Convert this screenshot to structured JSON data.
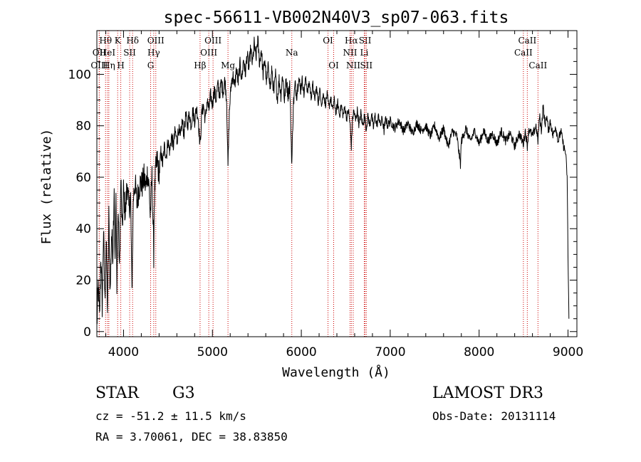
{
  "chart_data": {
    "type": "line",
    "title": "spec-56611-VB002N40V3_sp07-063.fits",
    "xlabel": "Wavelength (Å)",
    "ylabel": "Flux (relative)",
    "xlim": [
      3700,
      9100
    ],
    "ylim": [
      -2,
      117
    ],
    "x_ticks": [
      4000,
      5000,
      6000,
      7000,
      8000,
      9000
    ],
    "y_ticks": [
      0,
      20,
      40,
      60,
      80,
      100
    ],
    "line_color": "#000000",
    "marker_color": "#cc0000",
    "spectrum": [
      [
        3700,
        2
      ],
      [
        3715,
        18
      ],
      [
        3730,
        5
      ],
      [
        3745,
        30
      ],
      [
        3760,
        10
      ],
      [
        3775,
        40
      ],
      [
        3790,
        12
      ],
      [
        3805,
        35
      ],
      [
        3820,
        8
      ],
      [
        3835,
        45
      ],
      [
        3850,
        15
      ],
      [
        3865,
        38
      ],
      [
        3880,
        30
      ],
      [
        3895,
        58
      ],
      [
        3905,
        25
      ],
      [
        3915,
        50
      ],
      [
        3925,
        20
      ],
      [
        3940,
        48
      ],
      [
        3955,
        22
      ],
      [
        3970,
        60
      ],
      [
        3985,
        38
      ],
      [
        4000,
        55
      ],
      [
        4020,
        45
      ],
      [
        4040,
        58
      ],
      [
        4060,
        48
      ],
      [
        4080,
        52
      ],
      [
        4095,
        15
      ],
      [
        4100,
        28
      ],
      [
        4110,
        52
      ],
      [
        4130,
        58
      ],
      [
        4150,
        50
      ],
      [
        4170,
        55
      ],
      [
        4190,
        58
      ],
      [
        4210,
        57
      ],
      [
        4230,
        60
      ],
      [
        4250,
        56
      ],
      [
        4270,
        62
      ],
      [
        4290,
        55
      ],
      [
        4300,
        45
      ],
      [
        4320,
        60
      ],
      [
        4340,
        30
      ],
      [
        4345,
        50
      ],
      [
        4360,
        62
      ],
      [
        4380,
        67
      ],
      [
        4400,
        60
      ],
      [
        4420,
        70
      ],
      [
        4440,
        65
      ],
      [
        4460,
        72
      ],
      [
        4480,
        68
      ],
      [
        4500,
        74
      ],
      [
        4520,
        70
      ],
      [
        4540,
        76
      ],
      [
        4560,
        72
      ],
      [
        4580,
        78
      ],
      [
        4600,
        74
      ],
      [
        4620,
        79
      ],
      [
        4640,
        75
      ],
      [
        4660,
        82
      ],
      [
        4680,
        77
      ],
      [
        4700,
        84
      ],
      [
        4720,
        80
      ],
      [
        4740,
        85
      ],
      [
        4760,
        80
      ],
      [
        4780,
        86
      ],
      [
        4800,
        82
      ],
      [
        4820,
        87
      ],
      [
        4840,
        83
      ],
      [
        4861,
        72
      ],
      [
        4880,
        85
      ],
      [
        4900,
        88
      ],
      [
        4920,
        82
      ],
      [
        4940,
        90
      ],
      [
        4960,
        86
      ],
      [
        4980,
        92
      ],
      [
        5000,
        88
      ],
      [
        5020,
        94
      ],
      [
        5040,
        90
      ],
      [
        5060,
        96
      ],
      [
        5080,
        92
      ],
      [
        5100,
        97
      ],
      [
        5120,
        93
      ],
      [
        5140,
        98
      ],
      [
        5160,
        90
      ],
      [
        5175,
        64
      ],
      [
        5190,
        85
      ],
      [
        5210,
        96
      ],
      [
        5230,
        100
      ],
      [
        5250,
        95
      ],
      [
        5270,
        102
      ],
      [
        5290,
        97
      ],
      [
        5310,
        104
      ],
      [
        5330,
        98
      ],
      [
        5350,
        106
      ],
      [
        5370,
        100
      ],
      [
        5390,
        108
      ],
      [
        5410,
        102
      ],
      [
        5430,
        110
      ],
      [
        5450,
        104
      ],
      [
        5470,
        112
      ],
      [
        5490,
        106
      ],
      [
        5510,
        114
      ],
      [
        5530,
        104
      ],
      [
        5550,
        110
      ],
      [
        5570,
        100
      ],
      [
        5590,
        106
      ],
      [
        5610,
        96
      ],
      [
        5630,
        104
      ],
      [
        5650,
        94
      ],
      [
        5670,
        102
      ],
      [
        5690,
        92
      ],
      [
        5710,
        100
      ],
      [
        5730,
        90
      ],
      [
        5750,
        98
      ],
      [
        5770,
        92
      ],
      [
        5790,
        100
      ],
      [
        5810,
        90
      ],
      [
        5830,
        98
      ],
      [
        5850,
        92
      ],
      [
        5870,
        96
      ],
      [
        5893,
        65
      ],
      [
        5910,
        88
      ],
      [
        5930,
        96
      ],
      [
        5950,
        92
      ],
      [
        5970,
        99
      ],
      [
        5990,
        94
      ],
      [
        6010,
        98
      ],
      [
        6030,
        92
      ],
      [
        6050,
        99
      ],
      [
        6070,
        93
      ],
      [
        6090,
        97
      ],
      [
        6110,
        91
      ],
      [
        6130,
        96
      ],
      [
        6150,
        90
      ],
      [
        6170,
        95
      ],
      [
        6190,
        89
      ],
      [
        6210,
        94
      ],
      [
        6230,
        88
      ],
      [
        6250,
        93
      ],
      [
        6270,
        88
      ],
      [
        6290,
        92
      ],
      [
        6310,
        87
      ],
      [
        6330,
        91
      ],
      [
        6350,
        86
      ],
      [
        6370,
        90
      ],
      [
        6390,
        85
      ],
      [
        6410,
        89
      ],
      [
        6430,
        84
      ],
      [
        6450,
        88
      ],
      [
        6470,
        84
      ],
      [
        6490,
        87
      ],
      [
        6510,
        83
      ],
      [
        6530,
        86
      ],
      [
        6550,
        80
      ],
      [
        6563,
        72
      ],
      [
        6575,
        82
      ],
      [
        6590,
        86
      ],
      [
        6610,
        82
      ],
      [
        6630,
        86
      ],
      [
        6650,
        80
      ],
      [
        6670,
        85
      ],
      [
        6690,
        80
      ],
      [
        6710,
        84
      ],
      [
        6730,
        79
      ],
      [
        6750,
        84
      ],
      [
        6770,
        80
      ],
      [
        6790,
        85
      ],
      [
        6810,
        79
      ],
      [
        6830,
        84
      ],
      [
        6850,
        80
      ],
      [
        6870,
        84
      ],
      [
        6890,
        80
      ],
      [
        6910,
        83
      ],
      [
        6930,
        78
      ],
      [
        6950,
        83
      ],
      [
        6970,
        80
      ],
      [
        7000,
        82
      ],
      [
        7050,
        79
      ],
      [
        7100,
        82
      ],
      [
        7150,
        78
      ],
      [
        7200,
        81
      ],
      [
        7250,
        77
      ],
      [
        7300,
        81
      ],
      [
        7350,
        78
      ],
      [
        7400,
        80
      ],
      [
        7450,
        76
      ],
      [
        7500,
        80
      ],
      [
        7550,
        75
      ],
      [
        7600,
        79
      ],
      [
        7650,
        72
      ],
      [
        7700,
        78
      ],
      [
        7750,
        76
      ],
      [
        7790,
        65
      ],
      [
        7800,
        74
      ],
      [
        7850,
        79
      ],
      [
        7900,
        74
      ],
      [
        7950,
        78
      ],
      [
        8000,
        73
      ],
      [
        8050,
        78
      ],
      [
        8100,
        74
      ],
      [
        8150,
        77
      ],
      [
        8200,
        73
      ],
      [
        8250,
        78
      ],
      [
        8300,
        74
      ],
      [
        8350,
        77
      ],
      [
        8400,
        72
      ],
      [
        8450,
        77
      ],
      [
        8498,
        73
      ],
      [
        8520,
        78
      ],
      [
        8542,
        72
      ],
      [
        8560,
        79
      ],
      [
        8600,
        76
      ],
      [
        8640,
        80
      ],
      [
        8662,
        74
      ],
      [
        8680,
        84
      ],
      [
        8700,
        78
      ],
      [
        8720,
        88
      ],
      [
        8740,
        80
      ],
      [
        8760,
        84
      ],
      [
        8780,
        78
      ],
      [
        8800,
        82
      ],
      [
        8830,
        76
      ],
      [
        8860,
        80
      ],
      [
        8890,
        74
      ],
      [
        8920,
        78
      ],
      [
        8950,
        72
      ],
      [
        8970,
        70
      ],
      [
        8980,
        66
      ],
      [
        8990,
        60
      ],
      [
        9000,
        30
      ],
      [
        9010,
        5
      ]
    ],
    "line_markers": [
      {
        "label": "Hθ",
        "x": 3798,
        "row": 0
      },
      {
        "label": "OII",
        "x": 3727,
        "row": 1
      },
      {
        "label": "OIII",
        "x": 3727,
        "row": 2
      },
      {
        "label": "HeI",
        "x": 3820,
        "row": 1
      },
      {
        "label": "Hη",
        "x": 3835,
        "row": 2
      },
      {
        "label": "K",
        "x": 3934,
        "row": 0
      },
      {
        "label": "H",
        "x": 3969,
        "row": 2
      },
      {
        "label": "SII",
        "x": 4069,
        "row": 1
      },
      {
        "label": "Hδ",
        "x": 4102,
        "row": 0
      },
      {
        "label": "OIII",
        "x": 4363,
        "row": 0
      },
      {
        "label": "Hγ",
        "x": 4340,
        "row": 1
      },
      {
        "label": "G",
        "x": 4305,
        "row": 2
      },
      {
        "label": "Hβ",
        "x": 4861,
        "row": 2
      },
      {
        "label": "OIII",
        "x": 5007,
        "row": 0
      },
      {
        "label": "OIII",
        "x": 4959,
        "row": 1
      },
      {
        "label": "Mg",
        "x": 5175,
        "row": 2
      },
      {
        "label": "Na",
        "x": 5893,
        "row": 1
      },
      {
        "label": "OI",
        "x": 6300,
        "row": 0
      },
      {
        "label": "OI",
        "x": 6364,
        "row": 2
      },
      {
        "label": "Hα",
        "x": 6563,
        "row": 0
      },
      {
        "label": "NII",
        "x": 6548,
        "row": 1
      },
      {
        "label": "NII",
        "x": 6584,
        "row": 2
      },
      {
        "label": "SII",
        "x": 6717,
        "row": 0
      },
      {
        "label": "Li",
        "x": 6708,
        "row": 1
      },
      {
        "label": "SII",
        "x": 6731,
        "row": 2
      },
      {
        "label": "CaII",
        "x": 8542,
        "row": 0
      },
      {
        "label": "CaII",
        "x": 8498,
        "row": 1
      },
      {
        "label": "CaII",
        "x": 8662,
        "row": 2
      }
    ]
  },
  "info": {
    "object_type": "STAR",
    "subclass": "G3",
    "survey": "LAMOST DR3",
    "cz_line": "cz = -51.2 ± 11.5 km/s",
    "obs_date": "Obs-Date: 20131114",
    "radec_line": "RA =   3.70061, DEC =  38.83850"
  }
}
